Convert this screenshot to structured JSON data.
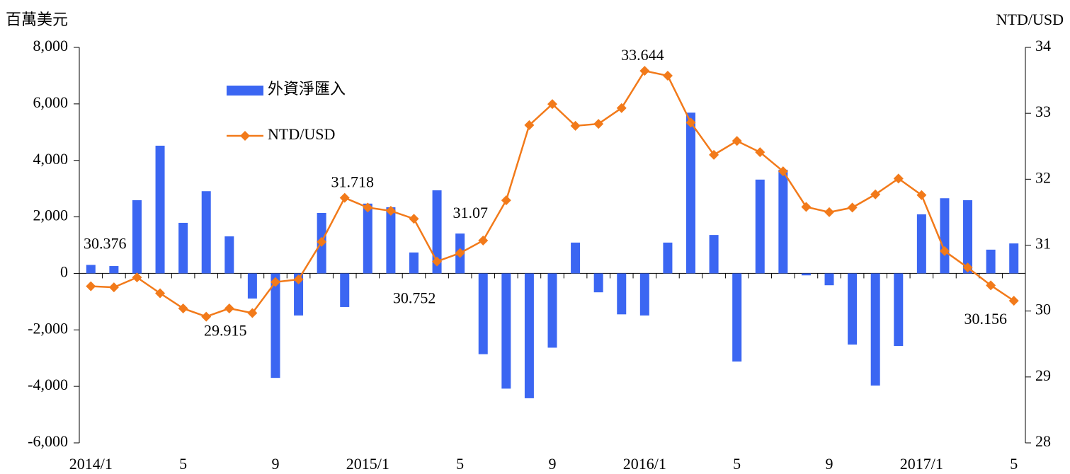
{
  "chart_data": {
    "type": "bar",
    "y_label": "百萬美元",
    "y2_label": "NTD/USD",
    "categories": [
      "2014/1",
      null,
      null,
      null,
      "5",
      null,
      null,
      null,
      "9",
      null,
      null,
      null,
      "2015/1",
      null,
      null,
      null,
      "5",
      null,
      null,
      null,
      "9",
      null,
      null,
      null,
      "2016/1",
      null,
      null,
      null,
      "5",
      null,
      null,
      null,
      "9",
      null,
      null,
      null,
      "2017/1",
      null,
      null,
      null,
      "5"
    ],
    "series": [
      {
        "name": "外資淨匯入",
        "type": "bar",
        "color": "#3b66f2",
        "values": [
          300,
          260,
          2590,
          4520,
          1790,
          2910,
          1310,
          -890,
          -3700,
          -1490,
          2140,
          -1190,
          2470,
          2340,
          740,
          2940,
          1410,
          -2860,
          -4080,
          -4420,
          -2630,
          1090,
          -670,
          -1450,
          -1490,
          1090,
          5690,
          1360,
          -3120,
          3320,
          3670,
          -70,
          -420,
          -2520,
          -3970,
          -2570,
          2090,
          2660,
          2590,
          840,
          1060
        ]
      },
      {
        "name": "NTD/USD",
        "type": "line",
        "axis": "y2",
        "color": "#f27a1a",
        "values": [
          30.376,
          30.36,
          30.51,
          30.27,
          30.04,
          29.915,
          30.04,
          29.97,
          30.44,
          30.48,
          31.05,
          31.718,
          31.57,
          31.52,
          31.4,
          30.752,
          30.88,
          31.07,
          31.68,
          32.82,
          33.14,
          32.81,
          32.84,
          33.08,
          33.644,
          33.57,
          32.86,
          32.37,
          32.58,
          32.41,
          32.12,
          31.58,
          31.5,
          31.57,
          31.77,
          32.01,
          31.76,
          30.91,
          30.66,
          30.39,
          30.156
        ],
        "value_labels": [
          "30.376",
          null,
          null,
          null,
          null,
          "29.915",
          null,
          null,
          null,
          null,
          null,
          "31.718",
          null,
          null,
          null,
          "30.752",
          null,
          "31.07",
          null,
          null,
          null,
          null,
          null,
          null,
          "33.644",
          null,
          null,
          null,
          null,
          null,
          null,
          null,
          null,
          null,
          null,
          null,
          null,
          null,
          null,
          null,
          "30.156"
        ]
      }
    ],
    "ylim": [
      -6000,
      8000
    ],
    "yticks": [
      {
        "value": -6000,
        "label": "-6,000"
      },
      {
        "value": -4000,
        "label": "-4,000"
      },
      {
        "value": -2000,
        "label": "-2,000"
      },
      0,
      {
        "value": 2000,
        "label": "2,000"
      },
      {
        "value": 4000,
        "label": "4,000"
      },
      {
        "value": 6000,
        "label": "6,000"
      },
      {
        "value": 8000,
        "label": "8,000"
      }
    ],
    "y2lim": [
      28,
      34
    ],
    "y2ticks": [
      28,
      29,
      30,
      31,
      32,
      33,
      34
    ]
  }
}
